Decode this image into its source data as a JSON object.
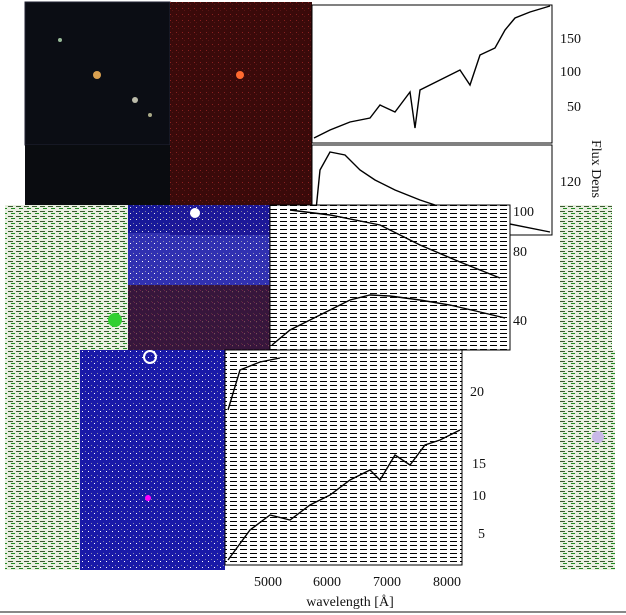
{
  "top_spectrum": {
    "ticks": [
      "150",
      "100",
      "50"
    ]
  },
  "second_spectrum": {
    "ticks": [
      "120"
    ]
  },
  "ylabel": "Flux Dens",
  "middle_spectrum": {
    "ticks": [
      "100",
      "80",
      "40"
    ]
  },
  "lower_spectrum": {
    "ticks": [
      "20"
    ]
  },
  "bottom_spectrum": {
    "ticks": [
      "15",
      "10",
      "5"
    ]
  },
  "x_axis": {
    "ticks": [
      "5000",
      "6000",
      "7000",
      "8000"
    ],
    "label": "wavelength [Å]"
  }
}
